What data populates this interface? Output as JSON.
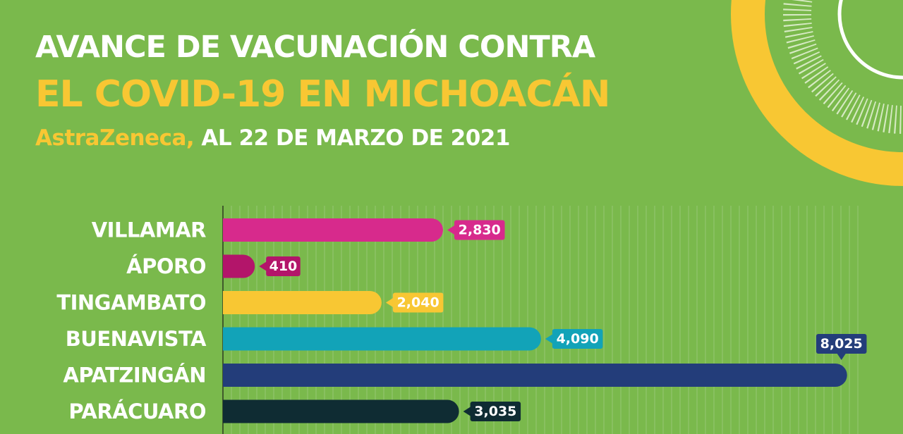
{
  "header": {
    "line1": "AVANCE DE VACUNACIÓN CONTRA",
    "line2": "EL COVID-19 EN MICHOACÁN",
    "brand": "AstraZeneca,",
    "date": " AL 22 DE MARZO DE 2021"
  },
  "colors": {
    "background": "#7ab94c",
    "accent_yellow": "#f8c733",
    "title_white": "#ffffff"
  },
  "chart_data": {
    "type": "bar",
    "orientation": "horizontal",
    "categories": [
      "VILLAMAR",
      "ÁPORO",
      "TINGAMBATO",
      "BUENAVISTA",
      "APATZINGÁN",
      "PARÁCUARO"
    ],
    "values": [
      2830,
      410,
      2040,
      4090,
      8025,
      3035
    ],
    "value_labels": [
      "2,830",
      "410",
      "2,040",
      "4,090",
      "8,025",
      "3,035"
    ],
    "bar_colors": [
      "#d72a8c",
      "#b3156a",
      "#f8c733",
      "#12a3b8",
      "#233d7a",
      "#0f2c33"
    ],
    "label_positions": [
      "right",
      "right",
      "right",
      "right",
      "above",
      "right"
    ],
    "xlim": [
      0,
      8200
    ],
    "grid": true,
    "title": "",
    "xlabel": "",
    "ylabel": ""
  }
}
